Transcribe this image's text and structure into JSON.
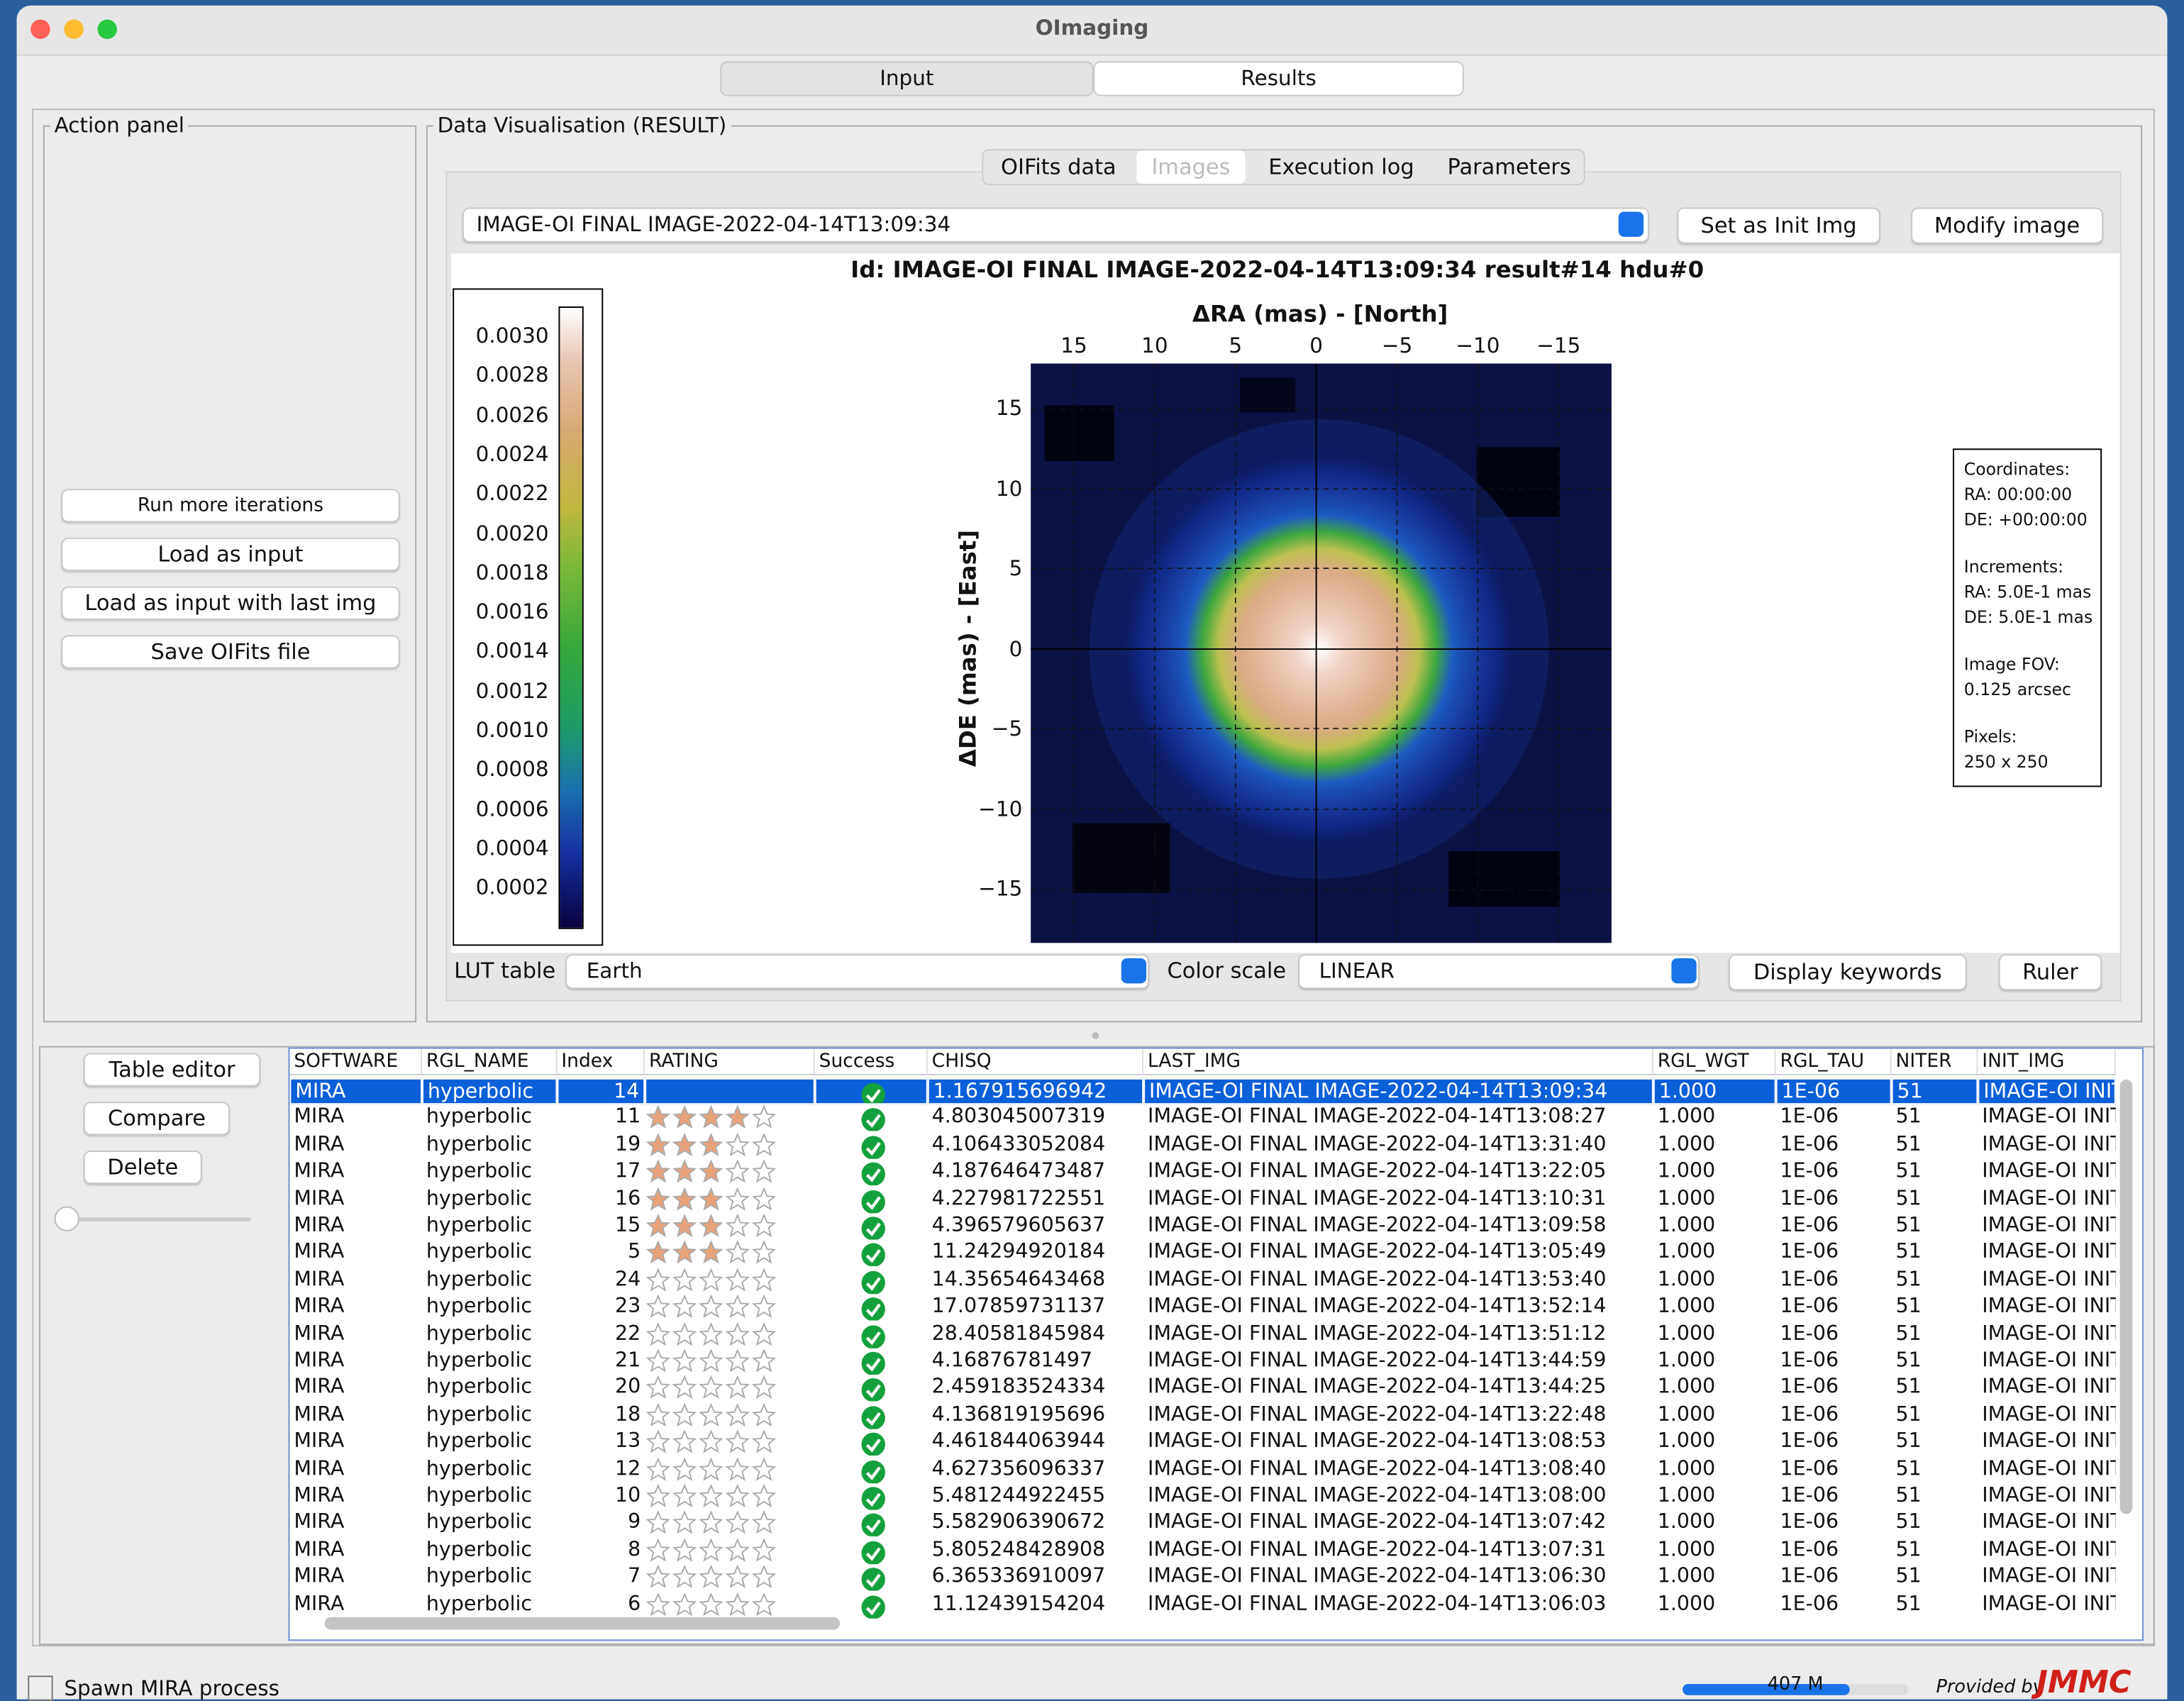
{
  "window": {
    "title": "OImaging"
  },
  "main_tabs": {
    "items": [
      "Input",
      "Results"
    ],
    "selected": 1
  },
  "action_panel": {
    "title": "Action panel",
    "buttons": [
      "Run more iterations",
      "Load as input",
      "Load as input with last img",
      "Save OIFits file"
    ]
  },
  "visualisation": {
    "title": "Data Visualisation (RESULT)",
    "tabs": [
      "OIFits data",
      "Images",
      "Execution log",
      "Parameters"
    ],
    "selected_tab": 1,
    "image_selector": "IMAGE-OI FINAL IMAGE-2022-04-14T13:09:34",
    "buttons": [
      "Set as Init Img",
      "Modify image"
    ],
    "plot_title": "Id: IMAGE-OI FINAL IMAGE-2022-04-14T13:09:34 result#14 hdu#0",
    "x_axis_label": "ΔRA (mas) - [North]",
    "y_axis_label": "ΔDE (mas) - [East]",
    "x_ticks": [
      "15",
      "10",
      "5",
      "0",
      "−5",
      "−10",
      "−15"
    ],
    "y_ticks": [
      "15",
      "10",
      "5",
      "0",
      "−5",
      "−10",
      "−15"
    ],
    "colorbar_ticks": [
      "0.0030",
      "0.0028",
      "0.0026",
      "0.0024",
      "0.0022",
      "0.0020",
      "0.0018",
      "0.0016",
      "0.0014",
      "0.0012",
      "0.0010",
      "0.0008",
      "0.0006",
      "0.0004",
      "0.0002"
    ],
    "info_box": [
      [
        "Coordinates:",
        "RA: 00:00:00",
        "DE: +00:00:00"
      ],
      [
        "Increments:",
        "RA: 5.0E-1 mas",
        "DE: 5.0E-1 mas"
      ],
      [
        "Image FOV:",
        "0.125 arcsec"
      ],
      [
        "Pixels:",
        "250 x 250"
      ]
    ],
    "lut_label": "LUT table",
    "lut_value": "Earth",
    "color_scale_label": "Color scale",
    "color_scale_value": "LINEAR",
    "bottom_buttons": [
      "Display keywords",
      "Ruler"
    ]
  },
  "results": {
    "buttons": [
      "Table editor",
      "Compare",
      "Delete"
    ],
    "columns": [
      "SOFTWARE",
      "RGL_NAME",
      "Index",
      "RATING",
      "Success",
      "CHISQ",
      "LAST_IMG",
      "RGL_WGT",
      "RGL_TAU",
      "NITER",
      "INIT_IMG"
    ],
    "selected_row": 0,
    "rows": [
      [
        "MIRA",
        "hyperbolic",
        14,
        null,
        true,
        "1.167915696942",
        "IMAGE-OI FINAL IMAGE-2022-04-14T13:09:34",
        "1.000",
        "1E-06",
        "51",
        "IMAGE-OI INIT"
      ],
      [
        "MIRA",
        "hyperbolic",
        11,
        4,
        true,
        "4.803045007319",
        "IMAGE-OI FINAL IMAGE-2022-04-14T13:08:27",
        "1.000",
        "1E-06",
        "51",
        "IMAGE-OI INIT"
      ],
      [
        "MIRA",
        "hyperbolic",
        19,
        3,
        true,
        "4.106433052084",
        "IMAGE-OI FINAL IMAGE-2022-04-14T13:31:40",
        "1.000",
        "1E-06",
        "51",
        "IMAGE-OI INIT"
      ],
      [
        "MIRA",
        "hyperbolic",
        17,
        3,
        true,
        "4.187646473487",
        "IMAGE-OI FINAL IMAGE-2022-04-14T13:22:05",
        "1.000",
        "1E-06",
        "51",
        "IMAGE-OI INIT"
      ],
      [
        "MIRA",
        "hyperbolic",
        16,
        3,
        true,
        "4.227981722551",
        "IMAGE-OI FINAL IMAGE-2022-04-14T13:10:31",
        "1.000",
        "1E-06",
        "51",
        "IMAGE-OI INIT"
      ],
      [
        "MIRA",
        "hyperbolic",
        15,
        3,
        true,
        "4.396579605637",
        "IMAGE-OI FINAL IMAGE-2022-04-14T13:09:58",
        "1.000",
        "1E-06",
        "51",
        "IMAGE-OI INIT"
      ],
      [
        "MIRA",
        "hyperbolic",
        5,
        3,
        true,
        "11.24294920184",
        "IMAGE-OI FINAL IMAGE-2022-04-14T13:05:49",
        "1.000",
        "1E-06",
        "51",
        "IMAGE-OI INIT"
      ],
      [
        "MIRA",
        "hyperbolic",
        24,
        0,
        true,
        "14.35654643468",
        "IMAGE-OI FINAL IMAGE-2022-04-14T13:53:40",
        "1.000",
        "1E-06",
        "51",
        "IMAGE-OI INIT"
      ],
      [
        "MIRA",
        "hyperbolic",
        23,
        0,
        true,
        "17.07859731137",
        "IMAGE-OI FINAL IMAGE-2022-04-14T13:52:14",
        "1.000",
        "1E-06",
        "51",
        "IMAGE-OI INIT"
      ],
      [
        "MIRA",
        "hyperbolic",
        22,
        0,
        true,
        "28.40581845984",
        "IMAGE-OI FINAL IMAGE-2022-04-14T13:51:12",
        "1.000",
        "1E-06",
        "51",
        "IMAGE-OI INIT"
      ],
      [
        "MIRA",
        "hyperbolic",
        21,
        0,
        true,
        "4.16876781497",
        "IMAGE-OI FINAL IMAGE-2022-04-14T13:44:59",
        "1.000",
        "1E-06",
        "51",
        "IMAGE-OI INIT"
      ],
      [
        "MIRA",
        "hyperbolic",
        20,
        0,
        true,
        "2.459183524334",
        "IMAGE-OI FINAL IMAGE-2022-04-14T13:44:25",
        "1.000",
        "1E-06",
        "51",
        "IMAGE-OI INIT"
      ],
      [
        "MIRA",
        "hyperbolic",
        18,
        0,
        true,
        "4.136819195696",
        "IMAGE-OI FINAL IMAGE-2022-04-14T13:22:48",
        "1.000",
        "1E-06",
        "51",
        "IMAGE-OI INIT"
      ],
      [
        "MIRA",
        "hyperbolic",
        13,
        0,
        true,
        "4.461844063944",
        "IMAGE-OI FINAL IMAGE-2022-04-14T13:08:53",
        "1.000",
        "1E-06",
        "51",
        "IMAGE-OI INIT"
      ],
      [
        "MIRA",
        "hyperbolic",
        12,
        0,
        true,
        "4.627356096337",
        "IMAGE-OI FINAL IMAGE-2022-04-14T13:08:40",
        "1.000",
        "1E-06",
        "51",
        "IMAGE-OI INIT"
      ],
      [
        "MIRA",
        "hyperbolic",
        10,
        0,
        true,
        "5.481244922455",
        "IMAGE-OI FINAL IMAGE-2022-04-14T13:08:00",
        "1.000",
        "1E-06",
        "51",
        "IMAGE-OI INIT"
      ],
      [
        "MIRA",
        "hyperbolic",
        9,
        0,
        true,
        "5.582906390672",
        "IMAGE-OI FINAL IMAGE-2022-04-14T13:07:42",
        "1.000",
        "1E-06",
        "51",
        "IMAGE-OI INIT"
      ],
      [
        "MIRA",
        "hyperbolic",
        8,
        0,
        true,
        "5.805248428908",
        "IMAGE-OI FINAL IMAGE-2022-04-14T13:07:31",
        "1.000",
        "1E-06",
        "51",
        "IMAGE-OI INIT"
      ],
      [
        "MIRA",
        "hyperbolic",
        7,
        0,
        true,
        "6.365336910097",
        "IMAGE-OI FINAL IMAGE-2022-04-14T13:06:30",
        "1.000",
        "1E-06",
        "51",
        "IMAGE-OI INIT"
      ],
      [
        "MIRA",
        "hyperbolic",
        6,
        0,
        true,
        "11.12439154204",
        "IMAGE-OI FINAL IMAGE-2022-04-14T13:06:03",
        "1.000",
        "1E-06",
        "51",
        "IMAGE-OI INIT"
      ]
    ]
  },
  "status": {
    "text": "Spawn MIRA process",
    "memory": "407 M",
    "provided_by": "Provided by",
    "logo": "JMMC"
  }
}
